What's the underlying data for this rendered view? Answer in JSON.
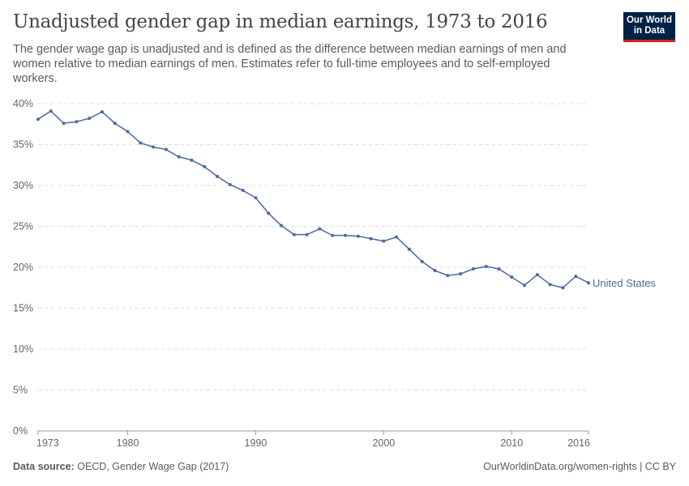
{
  "header": {
    "title": "Unadjusted gender gap in median earnings, 1973 to 2016",
    "subtitle": "The gender wage gap is unadjusted and is defined as the difference between median earnings of men and women relative to median earnings of men. Estimates refer to full-time employees and to self-employed workers.",
    "logo": "Our World in Data"
  },
  "footer": {
    "source_label": "Data source:",
    "source": "OECD, Gender Wage Gap (2017)",
    "link": "OurWorldinData.org/women-rights | CC BY"
  },
  "chart_data": {
    "type": "line",
    "xlim": [
      1973,
      2016
    ],
    "ylim": [
      0,
      40
    ],
    "x_ticks": [
      1973,
      1980,
      1990,
      2000,
      2010,
      2016
    ],
    "y_ticks": [
      0,
      5,
      10,
      15,
      20,
      25,
      30,
      35,
      40
    ],
    "y_tick_labels": [
      "0%",
      "5%",
      "10%",
      "15%",
      "20%",
      "25%",
      "30%",
      "35%",
      "40%"
    ],
    "grid": "horizontal dashed",
    "series": [
      {
        "name": "United States",
        "color": "#4c6a9c",
        "x": [
          1973,
          1974,
          1975,
          1976,
          1977,
          1978,
          1979,
          1980,
          1981,
          1982,
          1983,
          1984,
          1985,
          1986,
          1987,
          1988,
          1989,
          1990,
          1991,
          1992,
          1993,
          1994,
          1995,
          1996,
          1997,
          1998,
          1999,
          2000,
          2001,
          2002,
          2003,
          2004,
          2005,
          2006,
          2007,
          2008,
          2009,
          2010,
          2011,
          2012,
          2013,
          2014,
          2015,
          2016
        ],
        "values": [
          38.1,
          39.1,
          37.6,
          37.8,
          38.2,
          39.0,
          37.6,
          36.6,
          35.2,
          34.7,
          34.4,
          33.5,
          33.1,
          32.3,
          31.1,
          30.1,
          29.4,
          28.5,
          26.6,
          25.1,
          24.0,
          24.0,
          24.7,
          23.9,
          23.9,
          23.8,
          23.5,
          23.2,
          23.7,
          22.2,
          20.7,
          19.6,
          19.0,
          19.2,
          19.8,
          20.1,
          19.8,
          18.8,
          17.8,
          19.1,
          17.9,
          17.5,
          18.9,
          18.1
        ]
      }
    ]
  }
}
